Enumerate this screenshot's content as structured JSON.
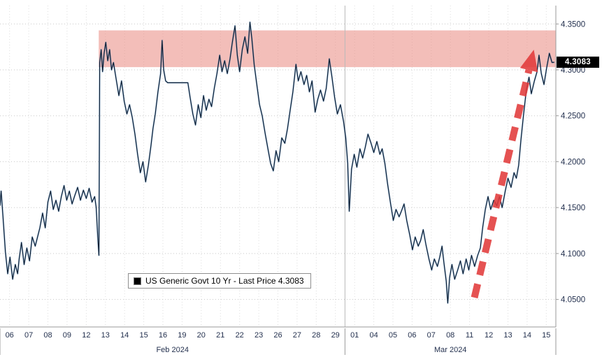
{
  "page": {
    "background": "#ffffff"
  },
  "chart_data": {
    "type": "line",
    "title": "US Generic Govt 10 Yr - Last Price 4.3083",
    "legend": {
      "label": "US Generic Govt 10 Yr - Last Price 4.3083",
      "marker_color": "#000000"
    },
    "last_price": 4.3083,
    "last_price_label": "4.3083",
    "ylim": [
      4.02,
      4.37
    ],
    "yticks": [
      4.35,
      4.3,
      4.25,
      4.2,
      4.15,
      4.1,
      4.05
    ],
    "ytick_labels": [
      "4.3500",
      "4.3000",
      "4.2500",
      "4.2000",
      "4.1500",
      "4.1000",
      "4.0500"
    ],
    "grid": true,
    "legend_position": "bottom-left-inside",
    "x_months": [
      {
        "label": "Feb 2024",
        "days": [
          "06",
          "07",
          "08",
          "09",
          "12",
          "13",
          "14",
          "15",
          "16",
          "19",
          "20",
          "21",
          "22",
          "23",
          "26",
          "27",
          "28",
          "29"
        ]
      },
      {
        "label": "Mar 2024",
        "days": [
          "01",
          "04",
          "05",
          "06",
          "07",
          "08",
          "11",
          "12",
          "13",
          "14",
          "15"
        ]
      }
    ],
    "highlight_band": {
      "y_top": 4.343,
      "y_bottom": 4.303,
      "x_start_day": 5.15,
      "color": "#e98980",
      "opacity": 0.55
    },
    "arrow": {
      "x1_day": 24.75,
      "y1": 4.052,
      "x2_day": 27.85,
      "y2": 4.322,
      "color": "#e23b3b",
      "opacity": 0.88
    },
    "axis_color": "#24314f",
    "frame_color": "#9a9a9a",
    "hgrid_color": "#c7c7c7",
    "vgrid_color": "#dedede",
    "series": [
      {
        "name": "US Generic Govt 10 Yr",
        "color": "#0d1b2e",
        "glow_color": "#2e75b6",
        "points": [
          [
            0.0,
            4.152
          ],
          [
            0.06,
            4.168
          ],
          [
            0.15,
            4.142
          ],
          [
            0.28,
            4.102
          ],
          [
            0.4,
            4.078
          ],
          [
            0.52,
            4.096
          ],
          [
            0.66,
            4.072
          ],
          [
            0.8,
            4.088
          ],
          [
            0.92,
            4.078
          ],
          [
            1.0,
            4.094
          ],
          [
            1.12,
            4.112
          ],
          [
            1.26,
            4.088
          ],
          [
            1.4,
            4.106
          ],
          [
            1.54,
            4.092
          ],
          [
            1.68,
            4.118
          ],
          [
            1.84,
            4.108
          ],
          [
            1.96,
            4.118
          ],
          [
            2.08,
            4.128
          ],
          [
            2.22,
            4.144
          ],
          [
            2.36,
            4.128
          ],
          [
            2.5,
            4.156
          ],
          [
            2.64,
            4.168
          ],
          [
            2.78,
            4.148
          ],
          [
            2.92,
            4.158
          ],
          [
            3.06,
            4.146
          ],
          [
            3.2,
            4.162
          ],
          [
            3.34,
            4.174
          ],
          [
            3.48,
            4.158
          ],
          [
            3.62,
            4.168
          ],
          [
            3.76,
            4.154
          ],
          [
            3.9,
            4.163
          ],
          [
            4.05,
            4.172
          ],
          [
            4.2,
            4.158
          ],
          [
            4.35,
            4.169
          ],
          [
            4.5,
            4.16
          ],
          [
            4.65,
            4.171
          ],
          [
            4.8,
            4.156
          ],
          [
            4.94,
            4.162
          ],
          [
            5.02,
            4.15
          ],
          [
            5.1,
            4.118
          ],
          [
            5.16,
            4.098
          ],
          [
            5.2,
            4.308
          ],
          [
            5.28,
            4.322
          ],
          [
            5.35,
            4.298
          ],
          [
            5.43,
            4.318
          ],
          [
            5.52,
            4.33
          ],
          [
            5.62,
            4.31
          ],
          [
            5.72,
            4.322
          ],
          [
            5.82,
            4.3
          ],
          [
            5.92,
            4.308
          ],
          [
            6.06,
            4.29
          ],
          [
            6.2,
            4.272
          ],
          [
            6.34,
            4.288
          ],
          [
            6.48,
            4.266
          ],
          [
            6.62,
            4.252
          ],
          [
            6.76,
            4.262
          ],
          [
            6.9,
            4.248
          ],
          [
            7.04,
            4.23
          ],
          [
            7.18,
            4.208
          ],
          [
            7.32,
            4.188
          ],
          [
            7.46,
            4.2
          ],
          [
            7.6,
            4.178
          ],
          [
            7.74,
            4.196
          ],
          [
            7.88,
            4.218
          ],
          [
            7.98,
            4.236
          ],
          [
            8.1,
            4.252
          ],
          [
            8.24,
            4.276
          ],
          [
            8.38,
            4.296
          ],
          [
            8.46,
            4.332
          ],
          [
            8.54,
            4.3
          ],
          [
            8.64,
            4.288
          ],
          [
            8.75,
            4.286
          ],
          [
            9.8,
            4.286
          ],
          [
            9.92,
            4.27
          ],
          [
            10.06,
            4.252
          ],
          [
            10.2,
            4.24
          ],
          [
            10.34,
            4.262
          ],
          [
            10.48,
            4.248
          ],
          [
            10.62,
            4.272
          ],
          [
            10.76,
            4.256
          ],
          [
            10.9,
            4.268
          ],
          [
            11.04,
            4.26
          ],
          [
            11.18,
            4.28
          ],
          [
            11.32,
            4.296
          ],
          [
            11.46,
            4.316
          ],
          [
            11.58,
            4.298
          ],
          [
            11.72,
            4.31
          ],
          [
            11.86,
            4.296
          ],
          [
            12.0,
            4.312
          ],
          [
            12.12,
            4.33
          ],
          [
            12.26,
            4.348
          ],
          [
            12.38,
            4.316
          ],
          [
            12.5,
            4.298
          ],
          [
            12.64,
            4.322
          ],
          [
            12.78,
            4.336
          ],
          [
            12.92,
            4.318
          ],
          [
            13.04,
            4.352
          ],
          [
            13.14,
            4.334
          ],
          [
            13.26,
            4.306
          ],
          [
            13.4,
            4.284
          ],
          [
            13.54,
            4.262
          ],
          [
            13.68,
            4.25
          ],
          [
            13.84,
            4.23
          ],
          [
            13.98,
            4.214
          ],
          [
            14.12,
            4.198
          ],
          [
            14.26,
            4.19
          ],
          [
            14.4,
            4.212
          ],
          [
            14.54,
            4.2
          ],
          [
            14.7,
            4.226
          ],
          [
            14.86,
            4.22
          ],
          [
            15.0,
            4.236
          ],
          [
            15.14,
            4.256
          ],
          [
            15.28,
            4.276
          ],
          [
            15.44,
            4.306
          ],
          [
            15.56,
            4.288
          ],
          [
            15.7,
            4.298
          ],
          [
            15.86,
            4.284
          ],
          [
            16.0,
            4.294
          ],
          [
            16.14,
            4.276
          ],
          [
            16.28,
            4.288
          ],
          [
            16.44,
            4.254
          ],
          [
            16.58,
            4.268
          ],
          [
            16.72,
            4.278
          ],
          [
            16.88,
            4.266
          ],
          [
            17.02,
            4.28
          ],
          [
            17.18,
            4.312
          ],
          [
            17.32,
            4.292
          ],
          [
            17.46,
            4.27
          ],
          [
            17.6,
            4.252
          ],
          [
            17.76,
            4.262
          ],
          [
            17.92,
            4.244
          ],
          [
            18.04,
            4.226
          ],
          [
            18.14,
            4.198
          ],
          [
            18.22,
            4.146
          ],
          [
            18.34,
            4.192
          ],
          [
            18.48,
            4.208
          ],
          [
            18.62,
            4.194
          ],
          [
            18.78,
            4.214
          ],
          [
            18.92,
            4.204
          ],
          [
            19.06,
            4.216
          ],
          [
            19.2,
            4.23
          ],
          [
            19.36,
            4.22
          ],
          [
            19.5,
            4.21
          ],
          [
            19.66,
            4.222
          ],
          [
            19.82,
            4.208
          ],
          [
            19.94,
            4.214
          ],
          [
            20.08,
            4.198
          ],
          [
            20.22,
            4.176
          ],
          [
            20.38,
            4.154
          ],
          [
            20.52,
            4.136
          ],
          [
            20.66,
            4.148
          ],
          [
            20.82,
            4.14
          ],
          [
            20.94,
            4.146
          ],
          [
            21.08,
            4.154
          ],
          [
            21.22,
            4.136
          ],
          [
            21.38,
            4.12
          ],
          [
            21.52,
            4.104
          ],
          [
            21.66,
            4.118
          ],
          [
            21.82,
            4.108
          ],
          [
            21.94,
            4.114
          ],
          [
            22.08,
            4.126
          ],
          [
            22.22,
            4.11
          ],
          [
            22.38,
            4.094
          ],
          [
            22.52,
            4.082
          ],
          [
            22.66,
            4.094
          ],
          [
            22.82,
            4.086
          ],
          [
            22.94,
            4.096
          ],
          [
            23.06,
            4.108
          ],
          [
            23.16,
            4.09
          ],
          [
            23.28,
            4.07
          ],
          [
            23.36,
            4.046
          ],
          [
            23.46,
            4.074
          ],
          [
            23.58,
            4.088
          ],
          [
            23.72,
            4.072
          ],
          [
            23.88,
            4.082
          ],
          [
            24.02,
            4.092
          ],
          [
            24.16,
            4.078
          ],
          [
            24.32,
            4.094
          ],
          [
            24.46,
            4.082
          ],
          [
            24.6,
            4.098
          ],
          [
            24.76,
            4.086
          ],
          [
            24.92,
            4.098
          ],
          [
            25.06,
            4.106
          ],
          [
            25.18,
            4.128
          ],
          [
            25.32,
            4.148
          ],
          [
            25.46,
            4.162
          ],
          [
            25.6,
            4.148
          ],
          [
            25.76,
            4.158
          ],
          [
            25.92,
            4.152
          ],
          [
            26.06,
            4.162
          ],
          [
            26.2,
            4.15
          ],
          [
            26.36,
            4.168
          ],
          [
            26.5,
            4.182
          ],
          [
            26.66,
            4.172
          ],
          [
            26.82,
            4.188
          ],
          [
            26.94,
            4.182
          ],
          [
            27.06,
            4.196
          ],
          [
            27.18,
            4.224
          ],
          [
            27.32,
            4.252
          ],
          [
            27.46,
            4.278
          ],
          [
            27.6,
            4.292
          ],
          [
            27.72,
            4.274
          ],
          [
            27.88,
            4.288
          ],
          [
            28.02,
            4.298
          ],
          [
            28.12,
            4.316
          ],
          [
            28.24,
            4.296
          ],
          [
            28.38,
            4.284
          ],
          [
            28.52,
            4.302
          ],
          [
            28.66,
            4.318
          ],
          [
            28.8,
            4.308
          ],
          [
            28.92,
            4.3083
          ]
        ]
      }
    ]
  }
}
